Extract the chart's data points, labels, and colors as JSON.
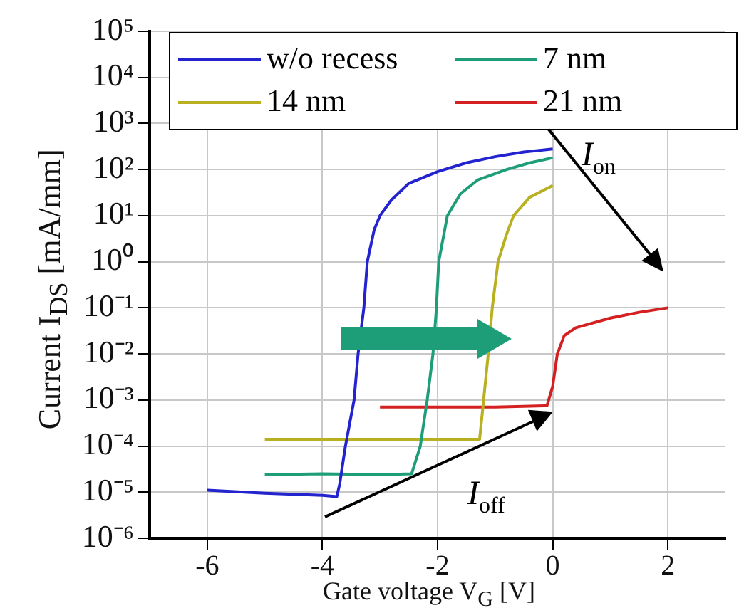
{
  "chart_data": {
    "type": "line",
    "xlabel": "Gate voltage V$_{G}$ [V]",
    "ylabel": "Current I$_{DS}$ [mA/mm]",
    "xlim": [
      -7,
      3
    ],
    "xticks": [
      -6,
      -4,
      -2,
      0,
      2
    ],
    "ylim": [
      1e-06,
      100000.0
    ],
    "yticks": [
      {
        "value": 1e-06,
        "label": "10⁻⁶"
      },
      {
        "value": 1e-05,
        "label": "10⁻⁵"
      },
      {
        "value": 0.0001,
        "label": "10⁻⁴"
      },
      {
        "value": 0.001,
        "label": "10⁻³"
      },
      {
        "value": 0.01,
        "label": "10⁻²"
      },
      {
        "value": 0.1,
        "label": "10⁻¹"
      },
      {
        "value": 1,
        "label": "10⁰"
      },
      {
        "value": 10,
        "label": "10¹"
      },
      {
        "value": 100,
        "label": "10²"
      },
      {
        "value": 1000,
        "label": "10³"
      },
      {
        "value": 10000,
        "label": "10⁴"
      },
      {
        "value": 100000,
        "label": "10⁵"
      }
    ],
    "log": "y",
    "grid": true,
    "legend": "top left",
    "marker": "none",
    "line_style": "solid",
    "annotations": [
      "I$_{on}$",
      "I$_{off}$"
    ],
    "series": [
      {
        "name": "w/o recess",
        "color": "#2323d0",
        "x": [
          -6,
          -5,
          -4,
          -3.75,
          -3.7,
          -3.6,
          -3.45,
          -3.38,
          -3.28,
          -3.22,
          -3.1,
          -3,
          -2.8,
          -2.5,
          -2,
          -1.5,
          -1,
          -0.5,
          0
        ],
        "values": [
          1.1e-05,
          9.5e-06,
          8.5e-06,
          8e-06,
          1.5e-05,
          0.0001,
          0.001,
          0.01,
          0.1,
          1,
          5,
          10,
          22,
          50,
          90,
          140,
          190,
          240,
          280
        ]
      },
      {
        "name": "7 nm",
        "color": "#1e9e78",
        "x": [
          -5,
          -4,
          -3,
          -2.45,
          -2.3,
          -2.18,
          -2.08,
          -2.02,
          -1.98,
          -1.83,
          -1.6,
          -1.3,
          -0.8,
          -0.4,
          0
        ],
        "values": [
          2.4e-05,
          2.5e-05,
          2.4e-05,
          2.5e-05,
          0.0001,
          0.001,
          0.01,
          0.1,
          1,
          10,
          30,
          60,
          100,
          140,
          180
        ]
      },
      {
        "name": "14 nm",
        "color": "#b8b020",
        "x": [
          -5,
          -4,
          -3,
          -2,
          -1.27,
          -1.2,
          -1.12,
          -1.05,
          -0.95,
          -0.8,
          -0.68,
          -0.4,
          0
        ],
        "values": [
          0.00014,
          0.00014,
          0.00014,
          0.00014,
          0.00014,
          0.001,
          0.01,
          0.1,
          1,
          4,
          10,
          25,
          45
        ]
      },
      {
        "name": "21 nm",
        "color": "#d42020",
        "x": [
          -3,
          -2,
          -1,
          -0.1,
          0,
          0.08,
          0.2,
          0.4,
          1,
          1.5,
          2
        ],
        "values": [
          0.0007,
          0.0007,
          0.0007,
          0.00075,
          0.002,
          0.01,
          0.025,
          0.037,
          0.06,
          0.08,
          0.1
        ]
      }
    ]
  }
}
